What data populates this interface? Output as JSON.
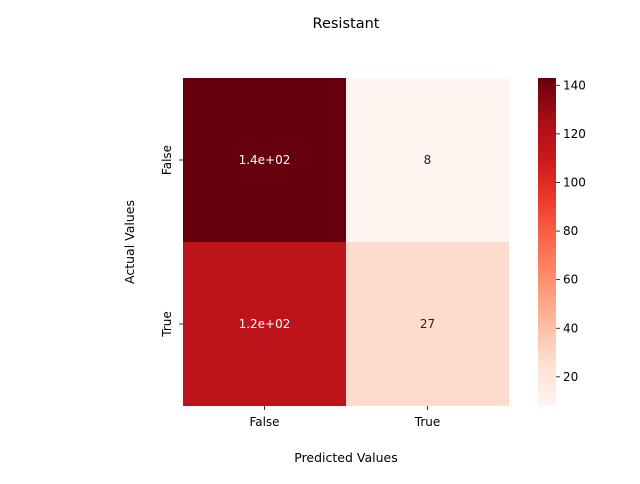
{
  "chart_data": {
    "type": "heatmap",
    "title": "Resistant",
    "xlabel": "Predicted Values",
    "ylabel": "Actual Values",
    "x_categories": [
      "False",
      "True"
    ],
    "y_categories": [
      "False",
      "True"
    ],
    "values": [
      [
        143,
        8
      ],
      [
        116,
        27
      ]
    ],
    "annotations": [
      [
        "1.4e+02",
        "8"
      ],
      [
        "1.2e+02",
        "27"
      ]
    ],
    "colormap": "Reds",
    "colormap_stops": [
      "#fff5f0",
      "#fee0d2",
      "#fcbba1",
      "#fc9272",
      "#fb6a4a",
      "#ef3b2c",
      "#cb181d",
      "#a50f15",
      "#67000d"
    ],
    "colorbar": {
      "range": [
        8,
        143
      ],
      "ticks": [
        20,
        40,
        60,
        80,
        100,
        120,
        140
      ]
    }
  }
}
